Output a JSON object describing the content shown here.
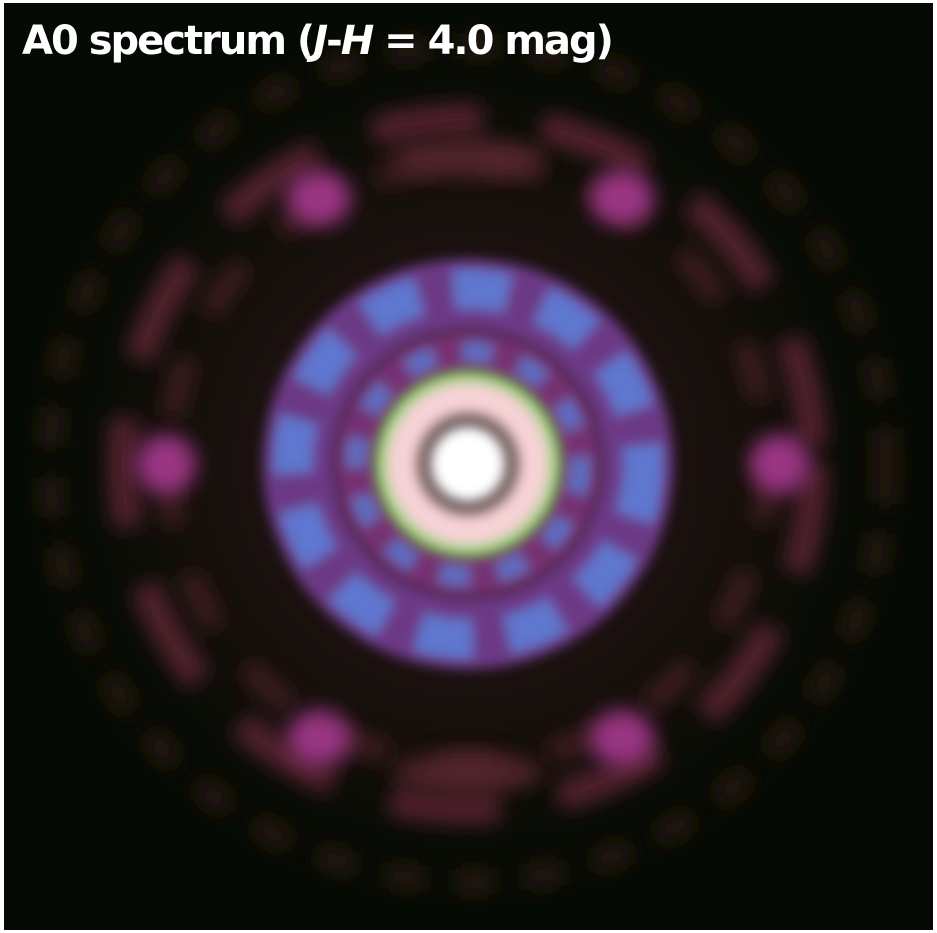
{
  "caption": {
    "prefix": "A0 spectrum (",
    "var_j": "J",
    "dash": "-",
    "var_h": "H",
    "suffix": " = 4.0 mag)"
  },
  "colors": {
    "background": "#050b04",
    "text": "#ffffff",
    "outer_ring": "#6a2a3a",
    "bright_lobe": "#a03a86",
    "blue_lobe": "#5a7ad0",
    "core_ring_pink": "#f6d2d6",
    "core_ring_green": "#9ccf7a",
    "core_white": "#ffffff"
  }
}
